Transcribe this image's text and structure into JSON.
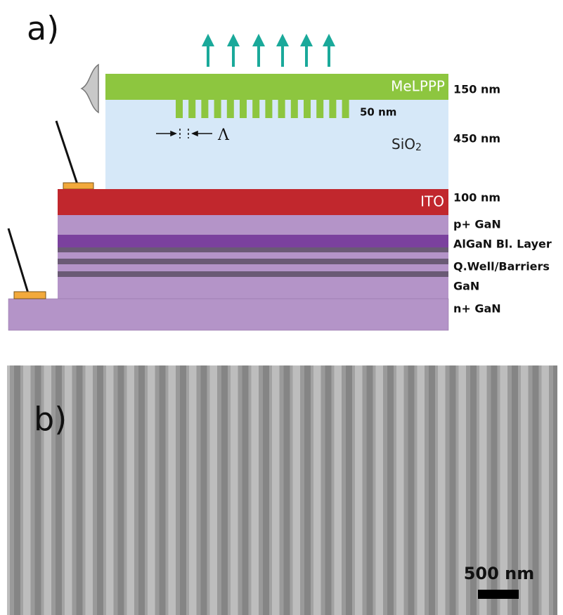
{
  "panel_a": {
    "label": "a)",
    "melppp": "MeLPPP",
    "grating_height": "50 nm",
    "period_symbol": "Λ",
    "sio2": {
      "text": "SiO",
      "subscript": "2"
    },
    "ito": "ITO",
    "thickness_labels": [
      "150 nm",
      "450 nm",
      "100 nm"
    ],
    "layer_labels": [
      "p+ GaN",
      "AlGaN Bl. Layer",
      "Q.Well/Barriers",
      "GaN",
      "n+ GaN"
    ]
  },
  "panel_b": {
    "label": "b)",
    "scale_bar": "500 nm"
  }
}
